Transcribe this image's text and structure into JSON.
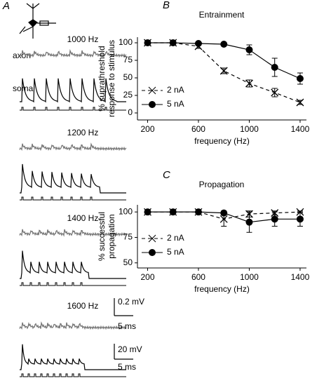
{
  "panel_a": {
    "letter": "A",
    "axon_label": "axon",
    "soma_label": "soma",
    "sections": [
      "1000 Hz",
      "1200 Hz",
      "1400 Hz",
      "1600 Hz"
    ],
    "scale_bars": [
      "0.2 mV",
      "5 ms",
      "20 mV",
      "5 ms"
    ]
  },
  "chart_data": [
    {
      "type": "line",
      "letter": "B",
      "title": "Entrainment",
      "xlabel": "frequency (Hz)",
      "ylabel": [
        "% suprathreshold",
        "response to stimulus"
      ],
      "x": [
        200,
        400,
        600,
        800,
        1000,
        1200,
        1400
      ],
      "xlim": [
        120,
        1450
      ],
      "xticks": [
        200,
        600,
        1000,
        1400
      ],
      "ylim": [
        -10,
        108
      ],
      "yticks": [
        0,
        25,
        50,
        75,
        100
      ],
      "legend": "lower left",
      "series": [
        {
          "name": "2 nA",
          "color": "#000000",
          "marker": "x",
          "linestyle": "dashed",
          "values": [
            100,
            100,
            95,
            60,
            42,
            29,
            15
          ],
          "errors": [
            2,
            2,
            3,
            4,
            5,
            6,
            3
          ]
        },
        {
          "name": "5 nA",
          "color": "#000000",
          "marker": "circle",
          "linestyle": "solid",
          "values": [
            100,
            100,
            99,
            98,
            90,
            65,
            49
          ],
          "errors": [
            2,
            2,
            2,
            2,
            7,
            13,
            8
          ]
        }
      ]
    },
    {
      "type": "line",
      "letter": "C",
      "title": "Propagation",
      "xlabel": "frequency (Hz)",
      "ylabel": [
        "% successful",
        "propagation"
      ],
      "x": [
        200,
        400,
        600,
        800,
        1000,
        1200,
        1400
      ],
      "xlim": [
        120,
        1450
      ],
      "xticks": [
        200,
        600,
        1000,
        1400
      ],
      "ylim": [
        45,
        107
      ],
      "yticks": [
        50,
        75,
        100
      ],
      "legend": "lower left",
      "series": [
        {
          "name": "2 nA",
          "color": "#000000",
          "marker": "x",
          "linestyle": "dashed",
          "values": [
            100,
            100,
            100,
            93,
            98,
            99,
            100
          ],
          "errors": [
            1,
            1,
            1,
            7,
            3,
            2,
            1
          ]
        },
        {
          "name": "5 nA",
          "color": "#000000",
          "marker": "circle",
          "linestyle": "solid",
          "values": [
            100,
            100,
            100,
            99,
            90,
            93,
            93
          ],
          "errors": [
            1,
            1,
            1,
            2,
            10,
            7,
            7
          ]
        }
      ]
    }
  ]
}
